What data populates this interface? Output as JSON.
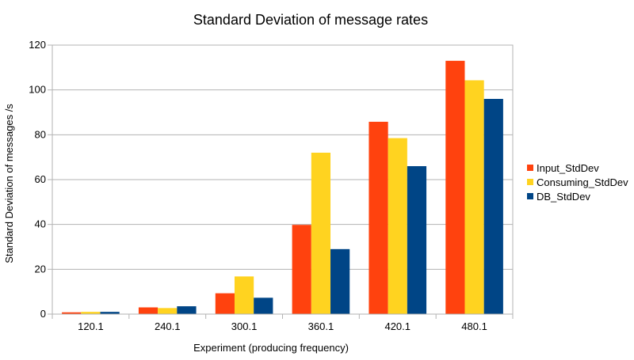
{
  "chart_data": {
    "type": "bar",
    "title": "Standard Deviation of message rates",
    "xlabel": "Experiment (producing frequency)",
    "ylabel": "Standard Deviation of messages /s",
    "categories": [
      "120.1",
      "240.1",
      "300.1",
      "360.1",
      "420.1",
      "480.1"
    ],
    "ylim": [
      0,
      120
    ],
    "yticks": [
      0,
      20,
      40,
      60,
      80,
      100,
      120
    ],
    "grid": true,
    "legend_position": "right",
    "series": [
      {
        "name": "Input_StdDev",
        "color": "#ff420e",
        "values": [
          0.8,
          3.0,
          9.3,
          39.8,
          85.8,
          113.0
        ]
      },
      {
        "name": "Consuming_StdDev",
        "color": "#ffd320",
        "values": [
          1.0,
          2.7,
          16.8,
          72.0,
          78.5,
          104.3
        ]
      },
      {
        "name": "DB_StdDev",
        "color": "#004586",
        "values": [
          1.0,
          3.5,
          7.3,
          29.0,
          66.0,
          96.0
        ]
      }
    ]
  }
}
